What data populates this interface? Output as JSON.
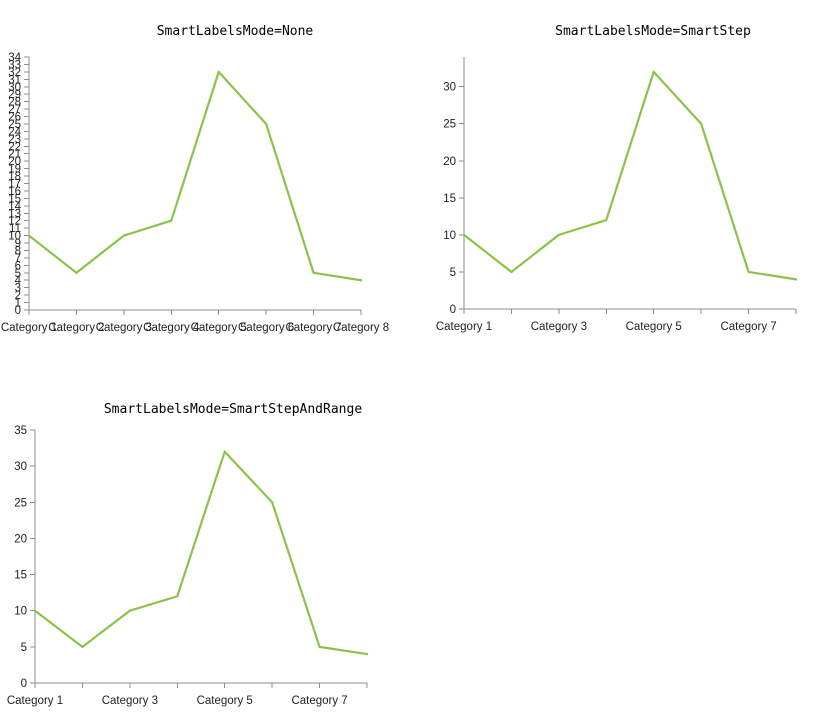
{
  "colors": {
    "series": "#8bc34a",
    "axis": "#8c8c8c",
    "text": "#222222"
  },
  "chart_data": [
    {
      "type": "line",
      "title": "SmartLabelsMode=None",
      "categories": [
        "Category 1",
        "Category 2",
        "Category 3",
        "Category 4",
        "Category 5",
        "Category 6",
        "Category 7",
        "Category 8"
      ],
      "series": [
        {
          "values": [
            10,
            5,
            10,
            12,
            32,
            25,
            5,
            4
          ]
        }
      ],
      "ylim": [
        0,
        34
      ],
      "yticks": [
        0,
        1,
        2,
        3,
        4,
        5,
        6,
        7,
        8,
        9,
        10,
        11,
        12,
        13,
        14,
        15,
        16,
        17,
        18,
        19,
        20,
        21,
        22,
        23,
        24,
        25,
        26,
        27,
        28,
        29,
        30,
        31,
        32,
        33,
        34
      ],
      "xlabel_categories": [
        "Category 1",
        "Category 2",
        "Category 3",
        "Category 4",
        "Category 5",
        "Category 6",
        "Category 7",
        "Category 8"
      ],
      "grid": false
    },
    {
      "type": "line",
      "title": "SmartLabelsMode=SmartStep",
      "categories": [
        "Category 1",
        "Category 2",
        "Category 3",
        "Category 4",
        "Category 5",
        "Category 6",
        "Category 7",
        "Category 8"
      ],
      "series": [
        {
          "values": [
            10,
            5,
            10,
            12,
            32,
            25,
            5,
            4
          ]
        }
      ],
      "ylim": [
        0,
        34
      ],
      "yticks": [
        0,
        5,
        10,
        15,
        20,
        25,
        30
      ],
      "xlabel_categories": [
        "Category 1",
        "Category 3",
        "Category 5",
        "Category 7"
      ],
      "grid": false
    },
    {
      "type": "line",
      "title": "SmartLabelsMode=SmartStepAndRange",
      "categories": [
        "Category 1",
        "Category 2",
        "Category 3",
        "Category 4",
        "Category 5",
        "Category 6",
        "Category 7",
        "Category 8"
      ],
      "series": [
        {
          "values": [
            10,
            5,
            10,
            12,
            32,
            25,
            5,
            4
          ]
        }
      ],
      "ylim": [
        0,
        35
      ],
      "yticks": [
        0,
        5,
        10,
        15,
        20,
        25,
        30,
        35
      ],
      "xlabel_categories": [
        "Category 1",
        "Category 3",
        "Category 5",
        "Category 7"
      ],
      "grid": false
    }
  ]
}
